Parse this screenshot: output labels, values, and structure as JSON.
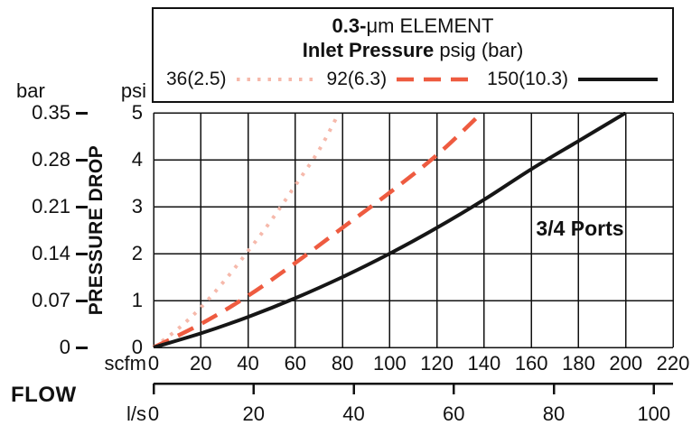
{
  "header": {
    "title_bold": "0.3-",
    "title_rest": "μm ELEMENT",
    "subtitle_bold": "Inlet Pressure",
    "subtitle_rest": " psig (bar)"
  },
  "annotation": "3/4 Ports",
  "axes": {
    "y_left_unit": "bar",
    "y_right_unit": "psi",
    "y_axis_title": "PRESSURE DROP",
    "bar_ticks": [
      "0.35",
      "0.28",
      "0.21",
      "0.14",
      "0.07",
      "0"
    ],
    "psi_ticks": [
      "5",
      "4",
      "3",
      "2",
      "1",
      "0"
    ],
    "x_unit": "scfm",
    "x_ticks": [
      0,
      20,
      40,
      60,
      80,
      100,
      120,
      140,
      160,
      180,
      200,
      220
    ],
    "flow_label": "FLOW",
    "x2_unit": "l/s",
    "x2_ticks": [
      0,
      20,
      40,
      60,
      80,
      100
    ]
  },
  "chart_data": {
    "type": "line",
    "title": "0.3-μm ELEMENT — Inlet Pressure psig (bar)",
    "xlabel": "FLOW (scfm, with secondary l/s axis)",
    "ylabel": "PRESSURE DROP (psi, with secondary bar axis)",
    "xlim_scfm": [
      0,
      220
    ],
    "ylim_psi": [
      0,
      5
    ],
    "bar_axis_ticks": [
      0,
      0.07,
      0.14,
      0.21,
      0.28,
      0.35
    ],
    "ls_axis_ticks": [
      0,
      20,
      40,
      60,
      80,
      100
    ],
    "scfm_per_ls": 2.1189,
    "grid": true,
    "legend_position": "top",
    "annotation": "3/4 Ports",
    "series": [
      {
        "name": "36(2.5)",
        "style": "dotted",
        "color": "#f6b9ab",
        "points_scfm_psi": [
          [
            0,
            0
          ],
          [
            10,
            0.38
          ],
          [
            20,
            0.85
          ],
          [
            30,
            1.42
          ],
          [
            40,
            2.05
          ],
          [
            50,
            2.72
          ],
          [
            60,
            3.45
          ],
          [
            70,
            4.2
          ],
          [
            78,
            4.95
          ]
        ]
      },
      {
        "name": "92(6.3)",
        "style": "dashed",
        "color": "#ee5b40",
        "points_scfm_psi": [
          [
            0,
            0
          ],
          [
            20,
            0.5
          ],
          [
            40,
            1.1
          ],
          [
            60,
            1.8
          ],
          [
            80,
            2.55
          ],
          [
            100,
            3.3
          ],
          [
            120,
            4.1
          ],
          [
            138,
            4.95
          ]
        ]
      },
      {
        "name": "150(10.3)",
        "style": "solid",
        "color": "#161616",
        "points_scfm_psi": [
          [
            0,
            0
          ],
          [
            20,
            0.3
          ],
          [
            40,
            0.65
          ],
          [
            60,
            1.05
          ],
          [
            80,
            1.5
          ],
          [
            100,
            2.0
          ],
          [
            120,
            2.55
          ],
          [
            140,
            3.15
          ],
          [
            160,
            3.8
          ],
          [
            180,
            4.4
          ],
          [
            200,
            5.0
          ]
        ]
      }
    ]
  }
}
